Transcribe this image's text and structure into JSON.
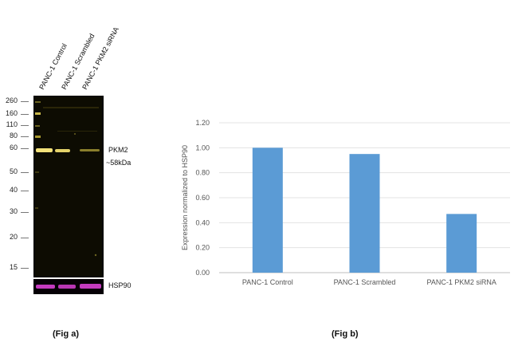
{
  "fig_a": {
    "lanes": [
      "PANC-1 Control",
      "PANC-1 Scrambled",
      "PANC-1 PKM2 siRNA"
    ],
    "mw_markers": [
      "260",
      "160",
      "110",
      "80",
      "60",
      "50",
      "40",
      "30",
      "20",
      "15"
    ],
    "target_label": "PKM2",
    "target_size": "~58kDa",
    "loading_control": "HSP90",
    "caption": "(Fig a)",
    "band_color": "#f3e27a",
    "control_band_color": "#c43bbf"
  },
  "fig_b": {
    "caption": "(Fig b)"
  },
  "chart_data": {
    "type": "bar",
    "categories": [
      "PANC-1 Control",
      "PANC-1 Scrambled",
      "PANC-1 PKM2 siRNA"
    ],
    "values": [
      1.0,
      0.95,
      0.47
    ],
    "title": "",
    "xlabel": "",
    "ylabel": "Expression normalized to HSP90",
    "ylim": [
      0,
      1.2
    ],
    "yticks": [
      "0.00",
      "0.20",
      "0.40",
      "0.60",
      "0.80",
      "1.00",
      "1.20"
    ],
    "grid": true,
    "bar_color": "#5b9bd5"
  }
}
